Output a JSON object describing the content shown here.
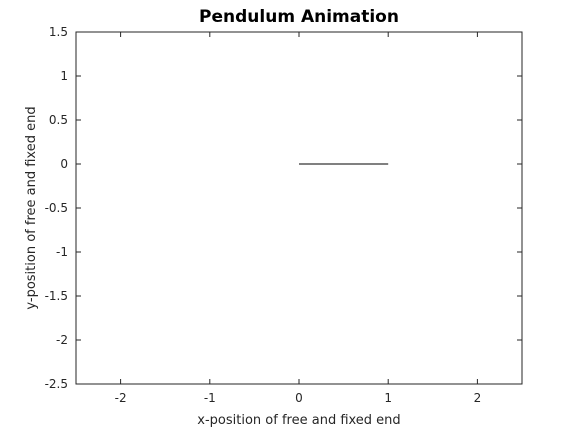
{
  "chart_data": {
    "type": "line",
    "title": "Pendulum Animation",
    "xlabel": "x-position of free and fixed end",
    "ylabel": "y-position of free and fixed end",
    "xlim": [
      -2.5,
      2.5
    ],
    "ylim": [
      -2.5,
      1.5
    ],
    "xticks": [
      -2,
      -1,
      0,
      1,
      2
    ],
    "xtick_labels": [
      "-2",
      "-1",
      "0",
      "1",
      "2"
    ],
    "yticks": [
      1.5,
      1,
      0.5,
      0,
      -0.5,
      -1,
      -1.5,
      -2,
      -2.5
    ],
    "ytick_labels": [
      "1.5",
      "1",
      "0.5",
      "0",
      "-0.5",
      "-1",
      "-1.5",
      "-2",
      "-2.5"
    ],
    "grid": false,
    "series": [
      {
        "x": [
          0,
          1
        ],
        "y": [
          0,
          0
        ]
      }
    ],
    "colors": {
      "axis": "#262626",
      "line": "#000000",
      "background": "#ffffff"
    }
  }
}
